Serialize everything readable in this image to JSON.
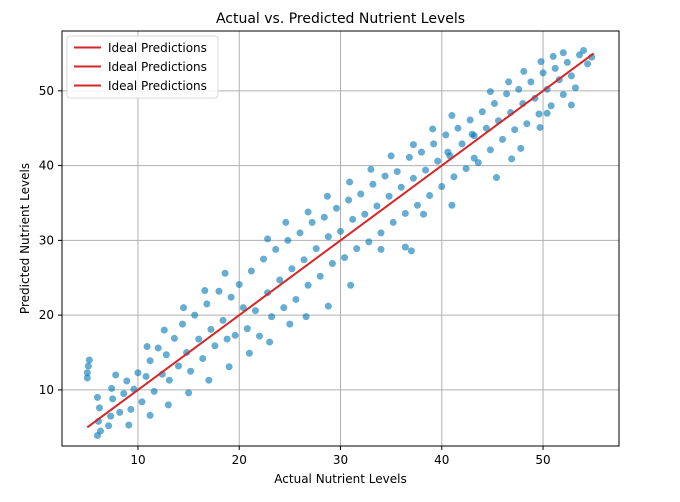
{
  "chart_data": {
    "type": "scatter",
    "title": "Actual vs. Predicted Nutrient Levels",
    "xlabel": "Actual Nutrient Levels",
    "ylabel": "Predicted Nutrient Levels",
    "xlim": [
      2.5,
      57.5
    ],
    "ylim": [
      2.5,
      58.0
    ],
    "xticks": [
      10,
      20,
      30,
      40,
      50
    ],
    "yticks": [
      10,
      20,
      30,
      40,
      50
    ],
    "grid": true,
    "legend_position": "top-left",
    "legend_entries": [
      "Ideal Predictions",
      "Ideal Predictions",
      "Ideal Predictions"
    ],
    "series": [
      {
        "type": "scatter",
        "color": "#0077b6",
        "alpha": 0.6,
        "points": [
          [
            5.0,
            12.3
          ],
          [
            5.1,
            13.2
          ],
          [
            5.2,
            14.0
          ],
          [
            5.0,
            11.6
          ],
          [
            6.0,
            3.9
          ],
          [
            6.1,
            5.8
          ],
          [
            6.2,
            7.6
          ],
          [
            6.0,
            9.0
          ],
          [
            6.3,
            4.5
          ],
          [
            7.1,
            5.2
          ],
          [
            7.3,
            6.5
          ],
          [
            7.5,
            8.8
          ],
          [
            7.4,
            10.2
          ],
          [
            7.8,
            12.0
          ],
          [
            8.2,
            7.0
          ],
          [
            8.6,
            9.5
          ],
          [
            8.9,
            11.2
          ],
          [
            9.3,
            7.4
          ],
          [
            9.6,
            10.1
          ],
          [
            10.0,
            12.3
          ],
          [
            10.4,
            8.4
          ],
          [
            10.8,
            11.8
          ],
          [
            11.2,
            13.9
          ],
          [
            11.6,
            9.8
          ],
          [
            12.0,
            15.6
          ],
          [
            12.4,
            12.1
          ],
          [
            12.8,
            14.7
          ],
          [
            13.1,
            11.3
          ],
          [
            13.6,
            16.9
          ],
          [
            14.0,
            13.2
          ],
          [
            14.4,
            18.8
          ],
          [
            14.8,
            15.0
          ],
          [
            15.2,
            12.5
          ],
          [
            15.6,
            20.0
          ],
          [
            16.0,
            16.8
          ],
          [
            16.4,
            14.2
          ],
          [
            16.8,
            21.5
          ],
          [
            17.2,
            18.1
          ],
          [
            17.6,
            15.9
          ],
          [
            18.0,
            23.2
          ],
          [
            18.4,
            19.3
          ],
          [
            18.8,
            16.8
          ],
          [
            19.2,
            22.4
          ],
          [
            19.6,
            17.3
          ],
          [
            20.0,
            24.1
          ],
          [
            20.4,
            21.0
          ],
          [
            20.8,
            18.2
          ],
          [
            21.2,
            25.9
          ],
          [
            21.6,
            20.6
          ],
          [
            22.0,
            17.2
          ],
          [
            22.4,
            27.5
          ],
          [
            22.8,
            23.0
          ],
          [
            23.2,
            19.8
          ],
          [
            23.6,
            28.8
          ],
          [
            24.0,
            24.7
          ],
          [
            24.4,
            21.0
          ],
          [
            24.8,
            30.0
          ],
          [
            25.2,
            26.2
          ],
          [
            25.6,
            22.1
          ],
          [
            26.0,
            31.0
          ],
          [
            26.4,
            27.4
          ],
          [
            26.8,
            24.0
          ],
          [
            27.2,
            32.4
          ],
          [
            27.6,
            28.9
          ],
          [
            28.0,
            25.2
          ],
          [
            28.4,
            33.1
          ],
          [
            28.8,
            30.5
          ],
          [
            29.2,
            26.9
          ],
          [
            29.6,
            34.3
          ],
          [
            30.0,
            31.2
          ],
          [
            30.4,
            27.7
          ],
          [
            30.8,
            35.4
          ],
          [
            31.2,
            32.8
          ],
          [
            31.6,
            28.9
          ],
          [
            32.0,
            36.2
          ],
          [
            32.4,
            33.5
          ],
          [
            32.8,
            29.8
          ],
          [
            33.2,
            37.5
          ],
          [
            33.6,
            34.6
          ],
          [
            34.0,
            31.0
          ],
          [
            34.4,
            38.6
          ],
          [
            34.8,
            35.9
          ],
          [
            35.2,
            32.4
          ],
          [
            35.6,
            39.2
          ],
          [
            36.0,
            37.1
          ],
          [
            36.4,
            33.6
          ],
          [
            36.8,
            41.1
          ],
          [
            37.2,
            38.3
          ],
          [
            37.6,
            34.7
          ],
          [
            38.0,
            41.8
          ],
          [
            38.4,
            39.4
          ],
          [
            38.8,
            36.0
          ],
          [
            39.2,
            42.9
          ],
          [
            39.6,
            40.6
          ],
          [
            40.0,
            37.2
          ],
          [
            40.4,
            44.1
          ],
          [
            40.8,
            41.3
          ],
          [
            41.2,
            38.5
          ],
          [
            41.6,
            45.0
          ],
          [
            42.0,
            42.9
          ],
          [
            42.4,
            39.6
          ],
          [
            42.8,
            46.1
          ],
          [
            43.2,
            44.0
          ],
          [
            43.6,
            40.4
          ],
          [
            44.0,
            47.2
          ],
          [
            44.4,
            45.0
          ],
          [
            44.8,
            42.1
          ],
          [
            45.2,
            48.3
          ],
          [
            45.6,
            46.0
          ],
          [
            46.0,
            43.5
          ],
          [
            46.4,
            49.6
          ],
          [
            46.8,
            47.1
          ],
          [
            47.2,
            44.8
          ],
          [
            47.6,
            50.2
          ],
          [
            48.0,
            48.3
          ],
          [
            48.4,
            45.6
          ],
          [
            48.8,
            51.2
          ],
          [
            49.2,
            49.0
          ],
          [
            49.6,
            46.9
          ],
          [
            50.0,
            52.4
          ],
          [
            50.4,
            50.2
          ],
          [
            50.8,
            48.0
          ],
          [
            51.2,
            53.0
          ],
          [
            51.6,
            51.5
          ],
          [
            52.0,
            49.5
          ],
          [
            52.4,
            53.8
          ],
          [
            52.8,
            52.0
          ],
          [
            53.2,
            50.4
          ],
          [
            53.6,
            54.8
          ],
          [
            54.0,
            55.4
          ],
          [
            54.4,
            53.6
          ],
          [
            54.8,
            54.5
          ],
          [
            52.8,
            48.1
          ],
          [
            52.0,
            55.1
          ],
          [
            43.2,
            41.0
          ],
          [
            43.0,
            44.2
          ],
          [
            41.0,
            34.7
          ],
          [
            40.6,
            41.8
          ],
          [
            38.2,
            33.5
          ],
          [
            37.0,
            28.6
          ],
          [
            36.4,
            29.1
          ],
          [
            34.0,
            28.8
          ],
          [
            31.0,
            24.0
          ],
          [
            28.8,
            21.2
          ],
          [
            26.6,
            19.8
          ],
          [
            25.0,
            18.8
          ],
          [
            23.0,
            16.4
          ],
          [
            21.0,
            14.9
          ],
          [
            19.0,
            13.1
          ],
          [
            17.0,
            11.3
          ],
          [
            15.0,
            9.6
          ],
          [
            13.0,
            8.0
          ],
          [
            11.2,
            6.6
          ],
          [
            9.1,
            5.3
          ],
          [
            45.4,
            38.4
          ],
          [
            47.8,
            42.3
          ],
          [
            49.7,
            45.1
          ],
          [
            50.4,
            47.0
          ],
          [
            46.9,
            40.9
          ],
          [
            18.6,
            25.6
          ],
          [
            16.6,
            23.3
          ],
          [
            14.5,
            21.0
          ],
          [
            12.6,
            18.0
          ],
          [
            10.9,
            15.8
          ],
          [
            22.8,
            30.2
          ],
          [
            24.6,
            32.4
          ],
          [
            26.8,
            33.8
          ],
          [
            28.7,
            35.9
          ],
          [
            30.9,
            37.8
          ],
          [
            33.0,
            39.5
          ],
          [
            35.0,
            41.3
          ],
          [
            37.2,
            42.8
          ],
          [
            39.1,
            44.9
          ],
          [
            41.0,
            46.7
          ],
          [
            44.8,
            49.9
          ],
          [
            46.6,
            51.2
          ],
          [
            48.1,
            52.6
          ],
          [
            49.8,
            53.9
          ],
          [
            51.0,
            54.6
          ]
        ]
      },
      {
        "type": "line",
        "name": "Ideal Predictions",
        "color": "#d62728",
        "x": [
          5,
          55
        ],
        "y": [
          5,
          55
        ]
      }
    ]
  }
}
